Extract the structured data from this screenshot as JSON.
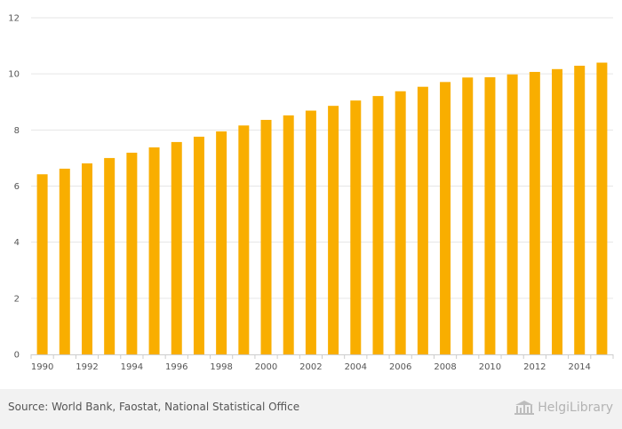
{
  "chart_data": {
    "type": "bar",
    "title": "",
    "xlabel": "",
    "ylabel": "",
    "categories": [
      "1990",
      "1991",
      "1992",
      "1993",
      "1994",
      "1995",
      "1996",
      "1997",
      "1998",
      "1999",
      "2000",
      "2001",
      "2002",
      "2003",
      "2004",
      "2005",
      "2006",
      "2007",
      "2008",
      "2009",
      "2010",
      "2011",
      "2012",
      "2013",
      "2014",
      "2015"
    ],
    "values": [
      6.42,
      6.62,
      6.81,
      7.0,
      7.19,
      7.38,
      7.57,
      7.76,
      7.95,
      8.16,
      8.36,
      8.52,
      8.69,
      8.86,
      9.05,
      9.21,
      9.38,
      9.54,
      9.71,
      9.87,
      9.88,
      9.98,
      10.07,
      10.17,
      10.29,
      10.4
    ],
    "ylim": [
      0,
      12
    ],
    "yticks": [
      "0",
      "2",
      "4",
      "6",
      "8",
      "10",
      "12"
    ],
    "xtick_labels": [
      "1990",
      "1992",
      "1994",
      "1996",
      "1998",
      "2000",
      "2002",
      "2004",
      "2006",
      "2008",
      "2010",
      "2012",
      "2014"
    ],
    "bar_color": "#f9ae00",
    "grid": true,
    "legend": "none"
  },
  "footer": {
    "source": "Source: World Bank, Faostat, National Statistical Office",
    "brand": "HelgiLibrary"
  },
  "colors": {
    "gridline": "#e6e6e6",
    "axis": "#cccccc",
    "text": "#555555",
    "footer_bg": "#f2f2f2",
    "brand": "#b3b3b3"
  }
}
